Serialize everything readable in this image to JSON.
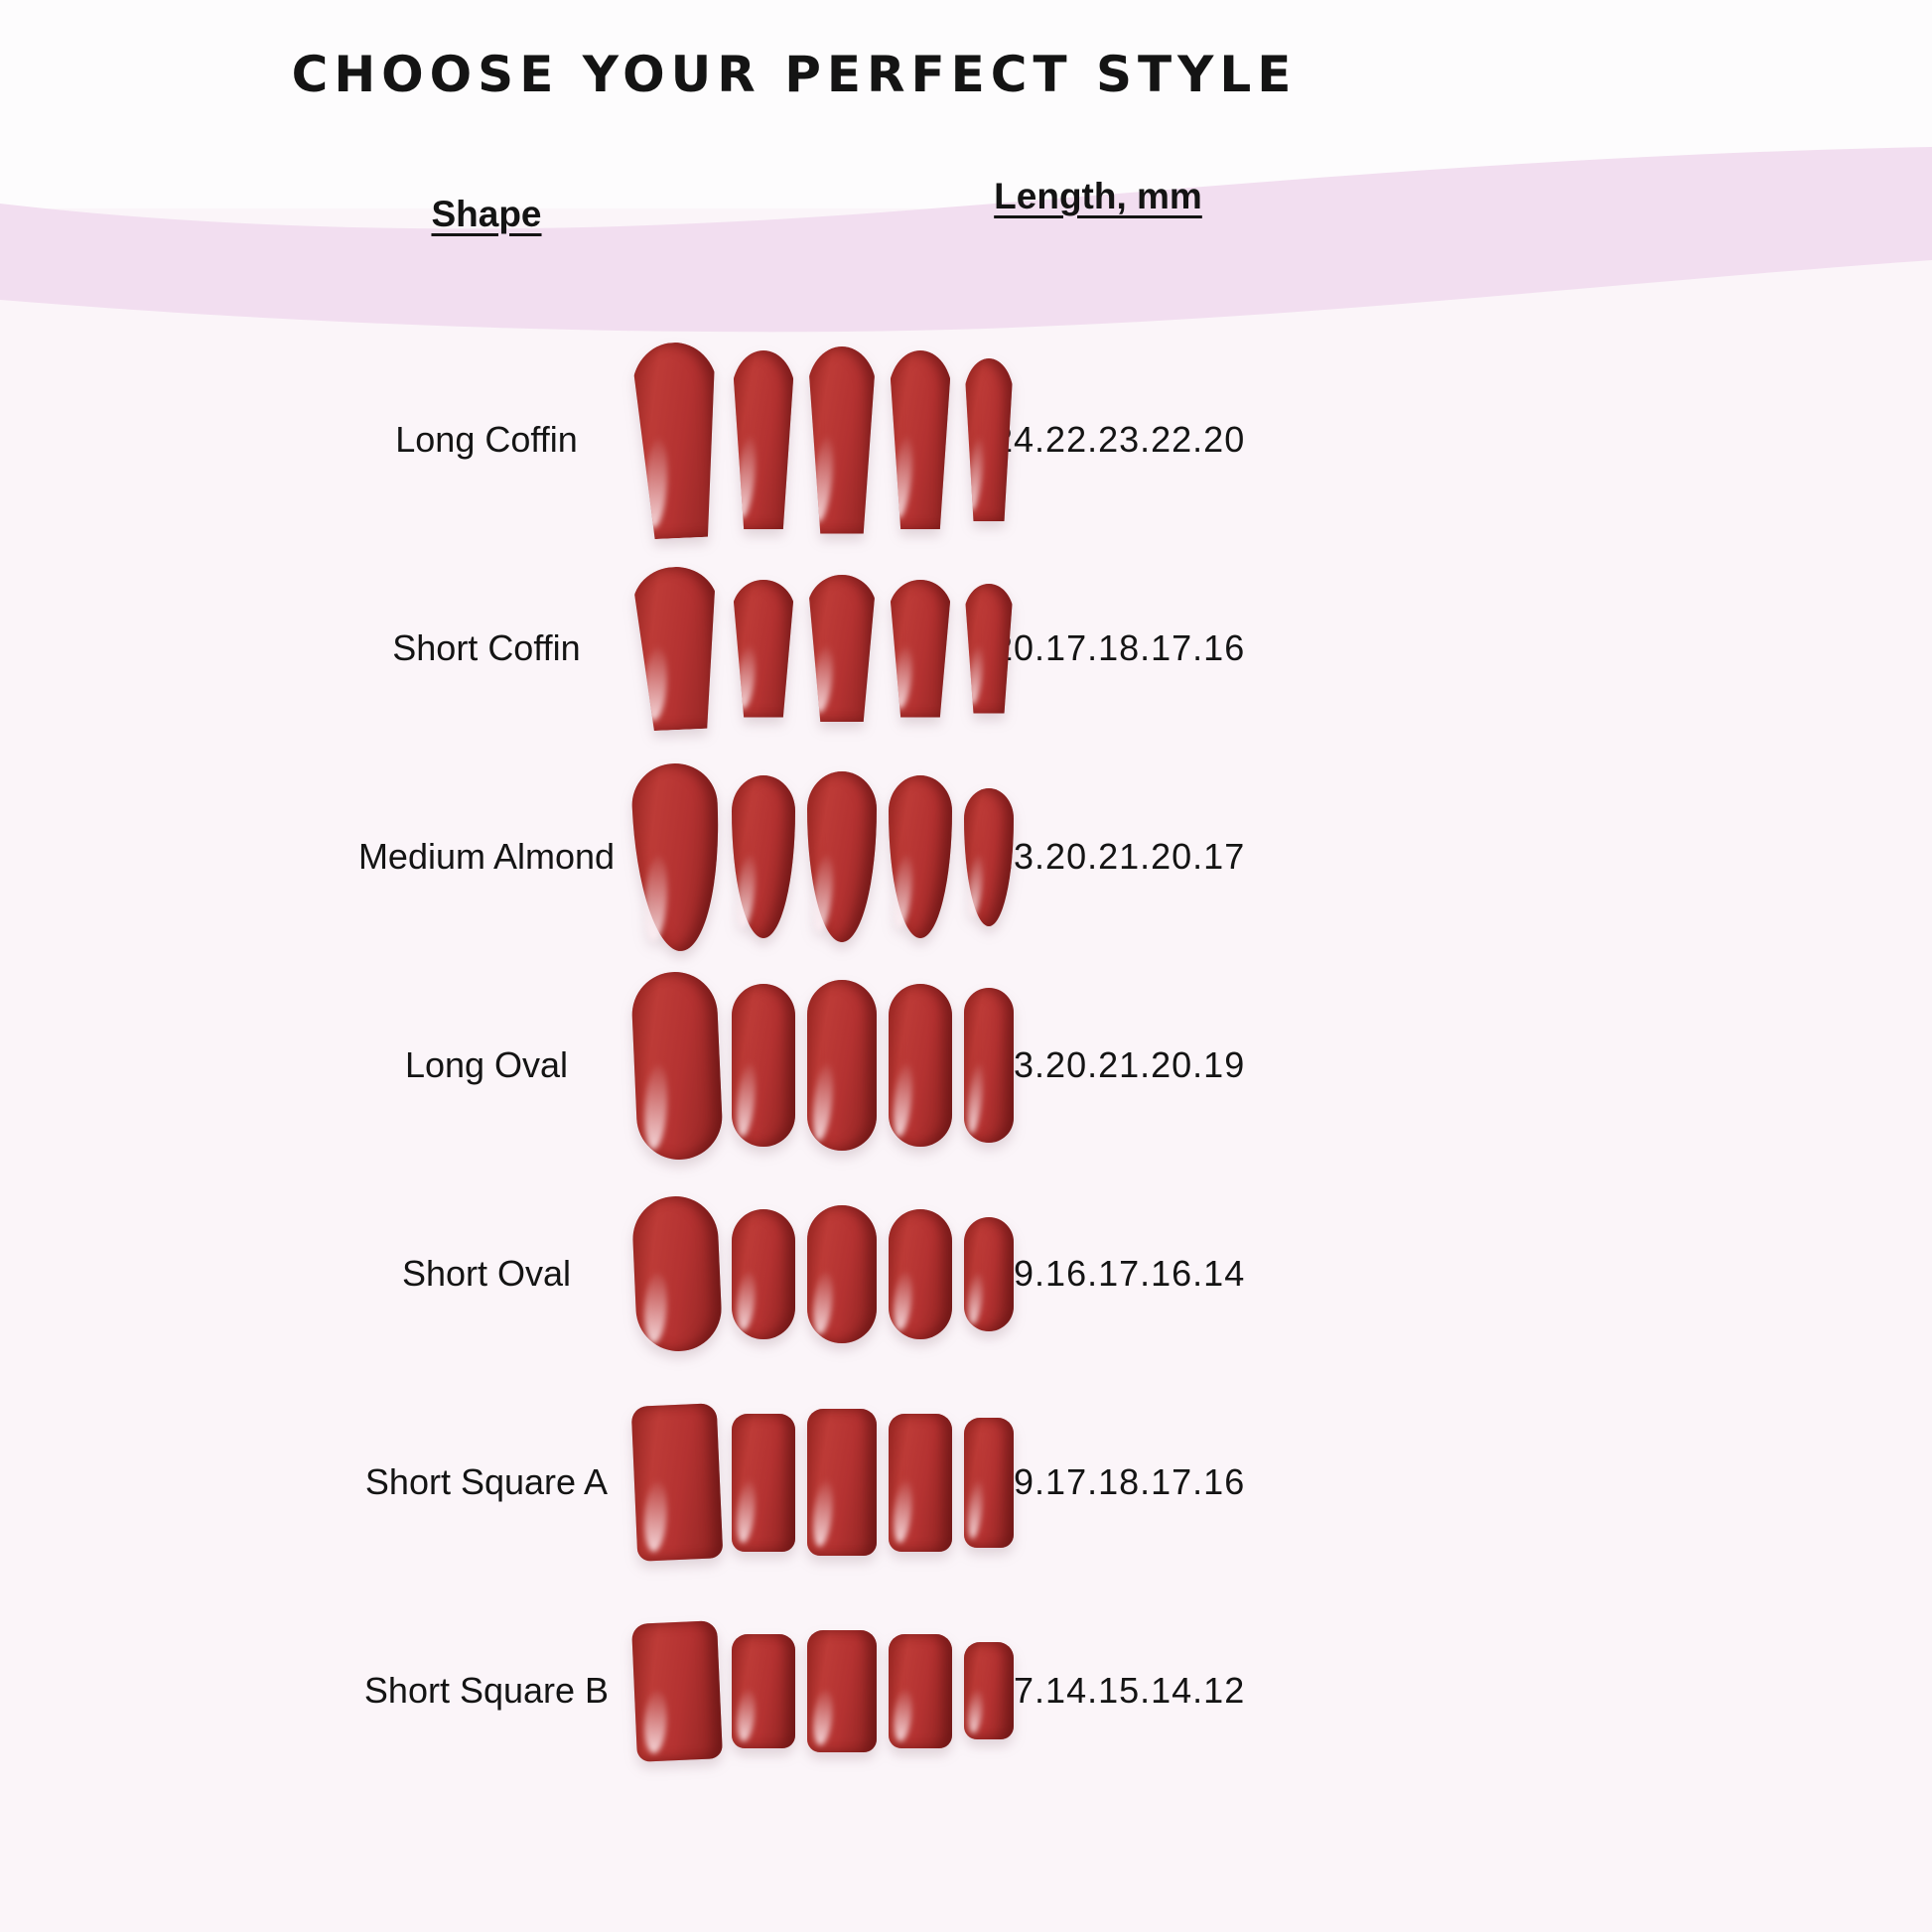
{
  "title": "CHOOSE YOUR PERFECT STYLE",
  "columns": {
    "shape": "Shape",
    "length": "Length, mm"
  },
  "colors": {
    "nail_red": "#b43231",
    "nail_red_dark": "#8c2321",
    "wave_pink": "#f2def0",
    "bg_top": "#fdfcfd",
    "bg_bottom": "#fbf5f9",
    "text": "#141414"
  },
  "rows": [
    {
      "shape": "Long Coffin",
      "lengths": "24.22.23.22.20",
      "nail_style": "coffin",
      "lengths_mm": [
        24,
        22,
        23,
        22,
        20
      ]
    },
    {
      "shape": "Short Coffin",
      "lengths": "20.17.18.17.16",
      "nail_style": "coffin",
      "lengths_mm": [
        20,
        17,
        18,
        17,
        16
      ]
    },
    {
      "shape": "Medium Almond",
      "lengths": "23.20.21.20.17",
      "nail_style": "almond",
      "lengths_mm": [
        23,
        20,
        21,
        20,
        17
      ]
    },
    {
      "shape": "Long Oval",
      "lengths": "23.20.21.20.19",
      "nail_style": "oval",
      "lengths_mm": [
        23,
        20,
        21,
        20,
        19
      ]
    },
    {
      "shape": "Short Oval",
      "lengths": "19.16.17.16.14",
      "nail_style": "oval",
      "lengths_mm": [
        19,
        16,
        17,
        16,
        14
      ]
    },
    {
      "shape": "Short Square A",
      "lengths": "19.17.18.17.16",
      "nail_style": "square",
      "lengths_mm": [
        19,
        17,
        18,
        17,
        16
      ]
    },
    {
      "shape": "Short Square B",
      "lengths": "17.14.15.14.12",
      "nail_style": "square",
      "lengths_mm": [
        17,
        14,
        15,
        14,
        12
      ]
    }
  ],
  "chart_data": {
    "type": "table",
    "title": "CHOOSE YOUR PERFECT STYLE",
    "columns": [
      "Shape",
      "Length, mm"
    ],
    "rows": [
      [
        "Long Coffin",
        "24.22.23.22.20"
      ],
      [
        "Short Coffin",
        "20.17.18.17.16"
      ],
      [
        "Medium Almond",
        "23.20.21.20.17"
      ],
      [
        "Long Oval",
        "23.20.21.20.19"
      ],
      [
        "Short Oval",
        "19.16.17.16.14"
      ],
      [
        "Short Square A",
        "19.17.18.17.16"
      ],
      [
        "Short Square B",
        "17.14.15.14.12"
      ]
    ]
  }
}
